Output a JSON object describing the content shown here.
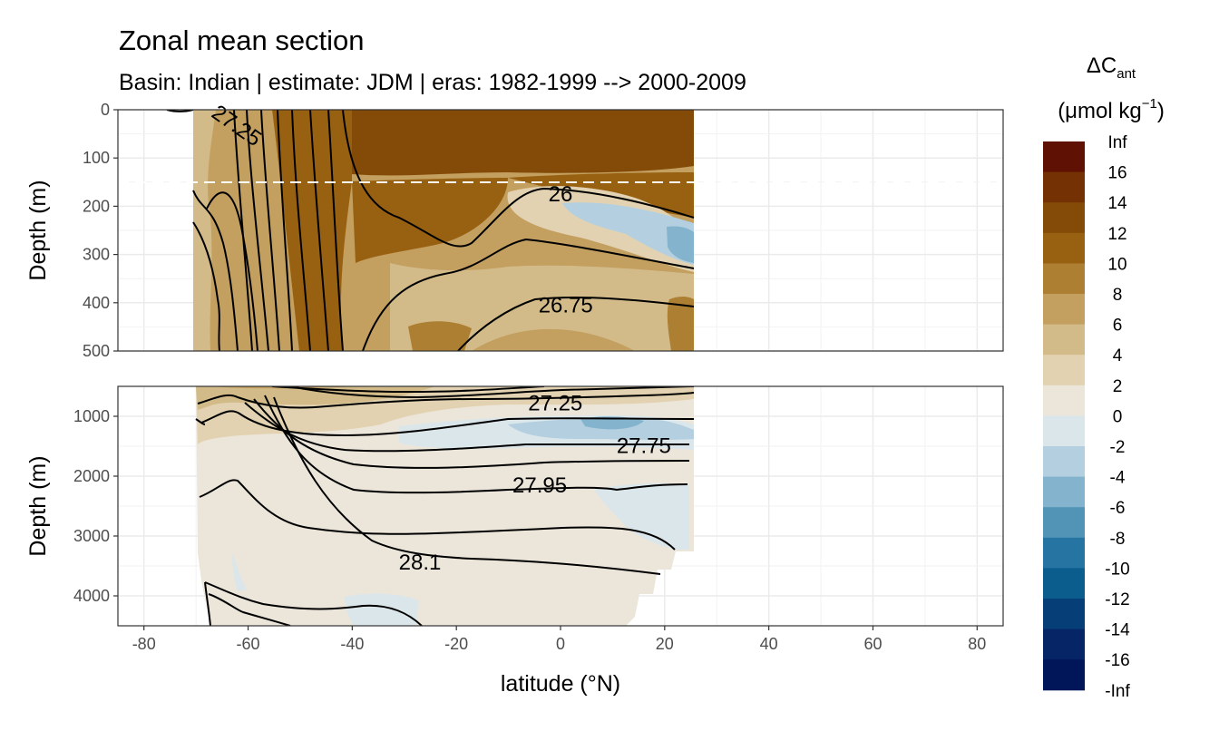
{
  "chart_data": {
    "type": "contour_section",
    "title": "Zonal mean section",
    "subtitle": "Basin: Indian | estimate: JDM  | eras: 1982-1999 --> 2000-2009",
    "xlabel": "latitude (°N)",
    "xlim": [
      -85,
      85
    ],
    "x_ticks": [
      -80,
      -60,
      -40,
      -20,
      0,
      20,
      40,
      60,
      80
    ],
    "data_extent_lat": [
      -70,
      25
    ],
    "panels": [
      {
        "name": "upper",
        "ylabel": "Depth (m)",
        "ylim": [
          0,
          500
        ],
        "y_ticks": [
          0,
          100,
          200,
          300,
          400,
          500
        ],
        "reference_depth_line": 150,
        "isopycnal_labels": [
          {
            "text": "27.25",
            "lat": -63,
            "depth": 30
          },
          {
            "text": "26",
            "lat": 0,
            "depth": 175
          },
          {
            "text": "26.75",
            "lat": 1,
            "depth": 405
          }
        ]
      },
      {
        "name": "lower",
        "ylabel": "Depth (m)",
        "ylim": [
          500,
          4500
        ],
        "y_ticks": [
          1000,
          2000,
          3000,
          4000
        ],
        "isopycnal_labels": [
          {
            "text": "27.25",
            "lat": -1,
            "depth": 780
          },
          {
            "text": "27.75",
            "lat": 16,
            "depth": 1490
          },
          {
            "text": "27.95",
            "lat": -4,
            "depth": 2150
          },
          {
            "text": "28.1",
            "lat": -27,
            "depth": 3440
          }
        ]
      }
    ],
    "legend": {
      "title_main": "ΔC",
      "title_sub": "ant",
      "unit_main": "(μmol kg",
      "unit_sup": "−1",
      "unit_close": ")",
      "labels": [
        "Inf",
        "16",
        "14",
        "12",
        "10",
        "8",
        "6",
        "4",
        "2",
        "0",
        "-2",
        "-4",
        "-6",
        "-8",
        "-10",
        "-12",
        "-14",
        "-16",
        "-Inf"
      ],
      "colors": [
        "#5f1203",
        "#743104",
        "#844a07",
        "#986111",
        "#ad7f32",
        "#c39f60",
        "#d3bb89",
        "#e2d2b1",
        "#ece6da",
        "#dbe6eb",
        "#b4d0e0",
        "#84b4cd",
        "#5194b6",
        "#2674a1",
        "#0a5d8d",
        "#063f78",
        "#062567",
        "#011559"
      ],
      "position": "right"
    }
  }
}
